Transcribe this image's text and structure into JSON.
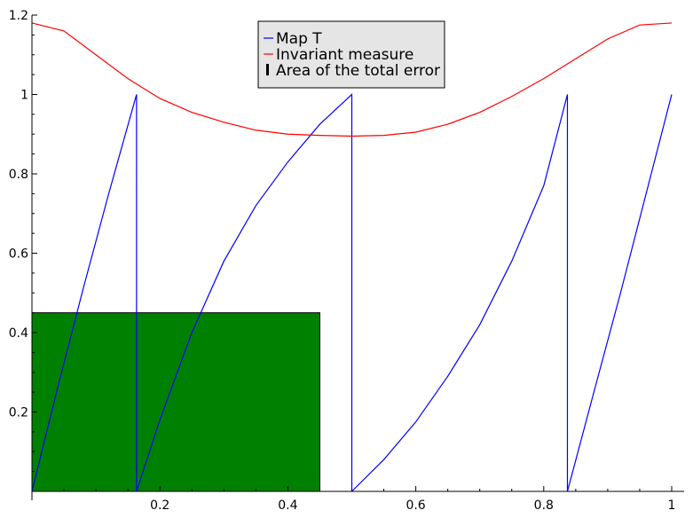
{
  "chart_data": {
    "type": "line",
    "title": "",
    "xlabel": "",
    "ylabel": "",
    "xlim": [
      0,
      1
    ],
    "ylim": [
      0,
      1.2
    ],
    "x_ticks": [
      {
        "value": 0.2,
        "label": "0.2"
      },
      {
        "value": 0.4,
        "label": "0.4"
      },
      {
        "value": 0.6,
        "label": "0.6"
      },
      {
        "value": 0.8,
        "label": "0.8"
      },
      {
        "value": 1.0,
        "label": "1"
      }
    ],
    "y_ticks": [
      {
        "value": 0.2,
        "label": "0.2"
      },
      {
        "value": 0.4,
        "label": "0.4"
      },
      {
        "value": 0.6,
        "label": "0.6"
      },
      {
        "value": 0.8,
        "label": "0.8"
      },
      {
        "value": 1.0,
        "label": "1"
      },
      {
        "value": 1.2,
        "label": "1.2"
      }
    ],
    "grid": false,
    "legend": {
      "placement": "top-center",
      "entries": [
        {
          "label": "Map T",
          "color": "#0000ff",
          "marker": "line"
        },
        {
          "label": "Invariant measure",
          "color": "#ff0000",
          "marker": "line"
        },
        {
          "label": "Area of the total error",
          "color": "#000000",
          "marker": "bar"
        }
      ]
    },
    "series": [
      {
        "name": "Map T",
        "color": "#0000ff",
        "segments": [
          [
            [
              0.0,
              0.0
            ],
            [
              0.04,
              0.26
            ],
            [
              0.08,
              0.51
            ],
            [
              0.12,
              0.75
            ],
            [
              0.1635,
              1.0
            ],
            [
              0.1635,
              0.0
            ]
          ],
          [
            [
              0.1635,
              0.0
            ],
            [
              0.2,
              0.18
            ],
            [
              0.25,
              0.4
            ],
            [
              0.3,
              0.58
            ],
            [
              0.35,
              0.72
            ],
            [
              0.4,
              0.83
            ],
            [
              0.45,
              0.925
            ],
            [
              0.5,
              1.0
            ],
            [
              0.5,
              0.0
            ]
          ],
          [
            [
              0.5,
              0.0
            ],
            [
              0.55,
              0.08
            ],
            [
              0.6,
              0.175
            ],
            [
              0.65,
              0.29
            ],
            [
              0.7,
              0.42
            ],
            [
              0.75,
              0.58
            ],
            [
              0.8,
              0.77
            ],
            [
              0.837,
              1.0
            ],
            [
              0.837,
              0.0
            ]
          ],
          [
            [
              0.837,
              0.0
            ],
            [
              0.88,
              0.26
            ],
            [
              0.92,
              0.5
            ],
            [
              0.96,
              0.75
            ],
            [
              1.0,
              1.0
            ]
          ]
        ]
      },
      {
        "name": "Invariant measure",
        "color": "#ff0000",
        "points": [
          [
            0.0,
            1.18
          ],
          [
            0.05,
            1.16
          ],
          [
            0.1,
            1.1
          ],
          [
            0.15,
            1.04
          ],
          [
            0.2,
            0.99
          ],
          [
            0.25,
            0.955
          ],
          [
            0.3,
            0.93
          ],
          [
            0.35,
            0.91
          ],
          [
            0.4,
            0.9
          ],
          [
            0.45,
            0.897
          ],
          [
            0.5,
            0.895
          ],
          [
            0.55,
            0.897
          ],
          [
            0.6,
            0.905
          ],
          [
            0.65,
            0.925
          ],
          [
            0.7,
            0.955
          ],
          [
            0.75,
            0.995
          ],
          [
            0.8,
            1.04
          ],
          [
            0.85,
            1.09
          ],
          [
            0.9,
            1.14
          ],
          [
            0.95,
            1.175
          ],
          [
            1.0,
            1.18
          ]
        ]
      }
    ],
    "bars": [
      {
        "name": "Area of the total error",
        "x0": 0.0,
        "x1": 0.45,
        "y0": 0.0,
        "y1": 0.45,
        "fill": "#008000",
        "stroke": "#000000"
      }
    ]
  }
}
